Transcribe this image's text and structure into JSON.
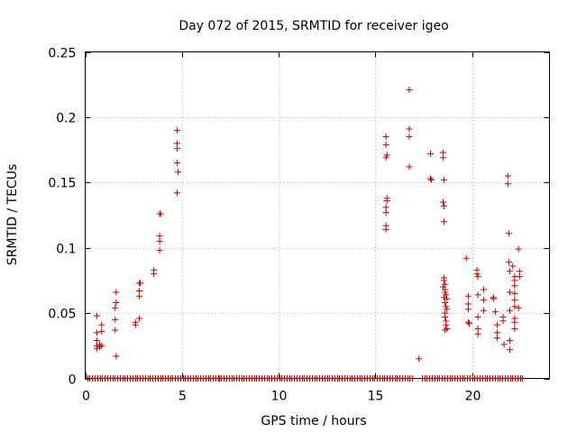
{
  "chart_data": {
    "type": "scatter",
    "title": "Day 072 of 2015, SRMTID for receiver igeo",
    "xlabel": "GPS time / hours",
    "ylabel": "SRMTID / TECUs",
    "xlim": [
      0,
      24
    ],
    "ylim": [
      0,
      0.25
    ],
    "xticks": [
      0,
      5,
      10,
      15,
      20
    ],
    "xtick_labels": [
      "0",
      "5",
      "10",
      "15",
      "20"
    ],
    "yticks": [
      0,
      0.05,
      0.1,
      0.15,
      0.2,
      0.25
    ],
    "ytick_labels": [
      "0",
      "0.05",
      "0.1",
      "0.15",
      "0.2",
      "0.25"
    ],
    "grid": true,
    "marker": "+",
    "color": "#cc0000",
    "series": [
      {
        "name": "SRMTID",
        "points": [
          [
            0.6,
            0.048
          ],
          [
            0.6,
            0.035
          ],
          [
            0.6,
            0.029
          ],
          [
            0.6,
            0.025
          ],
          [
            0.6,
            0.023
          ],
          [
            0.75,
            0.026
          ],
          [
            0.75,
            0.024
          ],
          [
            0.85,
            0.041
          ],
          [
            0.85,
            0.036
          ],
          [
            0.85,
            0.025
          ],
          [
            1.6,
            0.066
          ],
          [
            1.6,
            0.058
          ],
          [
            1.55,
            0.054
          ],
          [
            1.55,
            0.045
          ],
          [
            1.55,
            0.037
          ],
          [
            1.6,
            0.017
          ],
          [
            2.6,
            0.041
          ],
          [
            2.6,
            0.043
          ],
          [
            2.8,
            0.046
          ],
          [
            2.8,
            0.063
          ],
          [
            2.8,
            0.067
          ],
          [
            2.8,
            0.073
          ],
          [
            2.85,
            0.073
          ],
          [
            3.55,
            0.08
          ],
          [
            3.55,
            0.083
          ],
          [
            3.85,
            0.098
          ],
          [
            3.85,
            0.105
          ],
          [
            3.85,
            0.109
          ],
          [
            3.85,
            0.126
          ],
          [
            3.9,
            0.126
          ],
          [
            4.75,
            0.19
          ],
          [
            4.75,
            0.18
          ],
          [
            4.75,
            0.176
          ],
          [
            4.75,
            0.165
          ],
          [
            4.8,
            0.158
          ],
          [
            4.75,
            0.142
          ],
          [
            15.55,
            0.185
          ],
          [
            15.55,
            0.179
          ],
          [
            15.6,
            0.171
          ],
          [
            15.55,
            0.169
          ],
          [
            15.6,
            0.138
          ],
          [
            15.6,
            0.136
          ],
          [
            15.55,
            0.131
          ],
          [
            15.55,
            0.127
          ],
          [
            15.55,
            0.117
          ],
          [
            15.55,
            0.114
          ],
          [
            16.75,
            0.221
          ],
          [
            16.75,
            0.191
          ],
          [
            16.75,
            0.185
          ],
          [
            16.75,
            0.162
          ],
          [
            17.25,
            0.015
          ],
          [
            17.85,
            0.172
          ],
          [
            17.85,
            0.153
          ],
          [
            17.9,
            0.152
          ],
          [
            18.5,
            0.173
          ],
          [
            18.5,
            0.169
          ],
          [
            18.55,
            0.152
          ],
          [
            18.5,
            0.135
          ],
          [
            18.55,
            0.132
          ],
          [
            18.55,
            0.12
          ],
          [
            18.55,
            0.077
          ],
          [
            18.55,
            0.075
          ],
          [
            18.6,
            0.072
          ],
          [
            18.5,
            0.07
          ],
          [
            18.6,
            0.068
          ],
          [
            18.6,
            0.066
          ],
          [
            18.65,
            0.064
          ],
          [
            18.55,
            0.062
          ],
          [
            18.7,
            0.061
          ],
          [
            18.6,
            0.058
          ],
          [
            18.65,
            0.055
          ],
          [
            18.7,
            0.053
          ],
          [
            18.6,
            0.05
          ],
          [
            18.6,
            0.047
          ],
          [
            18.65,
            0.044
          ],
          [
            18.65,
            0.041
          ],
          [
            18.7,
            0.038
          ],
          [
            18.6,
            0.037
          ],
          [
            19.7,
            0.092
          ],
          [
            19.8,
            0.063
          ],
          [
            19.8,
            0.057
          ],
          [
            19.8,
            0.053
          ],
          [
            19.8,
            0.043
          ],
          [
            19.85,
            0.042
          ],
          [
            20.25,
            0.083
          ],
          [
            20.25,
            0.08
          ],
          [
            20.3,
            0.078
          ],
          [
            20.3,
            0.064
          ],
          [
            20.3,
            0.047
          ],
          [
            20.3,
            0.038
          ],
          [
            20.3,
            0.034
          ],
          [
            20.6,
            0.068
          ],
          [
            20.6,
            0.06
          ],
          [
            20.6,
            0.052
          ],
          [
            21.1,
            0.062
          ],
          [
            21.1,
            0.061
          ],
          [
            21.2,
            0.051
          ],
          [
            21.3,
            0.041
          ],
          [
            21.3,
            0.035
          ],
          [
            21.3,
            0.031
          ],
          [
            21.6,
            0.047
          ],
          [
            21.6,
            0.044
          ],
          [
            21.65,
            0.026
          ],
          [
            21.85,
            0.155
          ],
          [
            21.85,
            0.149
          ],
          [
            21.9,
            0.111
          ],
          [
            21.9,
            0.089
          ],
          [
            21.95,
            0.082
          ],
          [
            21.95,
            0.066
          ],
          [
            21.95,
            0.052
          ],
          [
            21.95,
            0.029
          ],
          [
            21.95,
            0.022
          ],
          [
            22.1,
            0.086
          ],
          [
            22.2,
            0.078
          ],
          [
            22.2,
            0.075
          ],
          [
            22.2,
            0.071
          ],
          [
            22.2,
            0.065
          ],
          [
            22.2,
            0.06
          ],
          [
            22.2,
            0.055
          ],
          [
            22.2,
            0.046
          ],
          [
            22.2,
            0.043
          ],
          [
            22.2,
            0.038
          ],
          [
            22.4,
            0.099
          ],
          [
            22.45,
            0.082
          ],
          [
            22.45,
            0.078
          ],
          [
            22.4,
            0.054
          ]
        ],
        "zero_segments_hours": [
          [
            0.1,
            6.9
          ],
          [
            6.9,
            14.2
          ],
          [
            14.3,
            17.0
          ],
          [
            17.4,
            22.6
          ]
        ]
      }
    ]
  }
}
